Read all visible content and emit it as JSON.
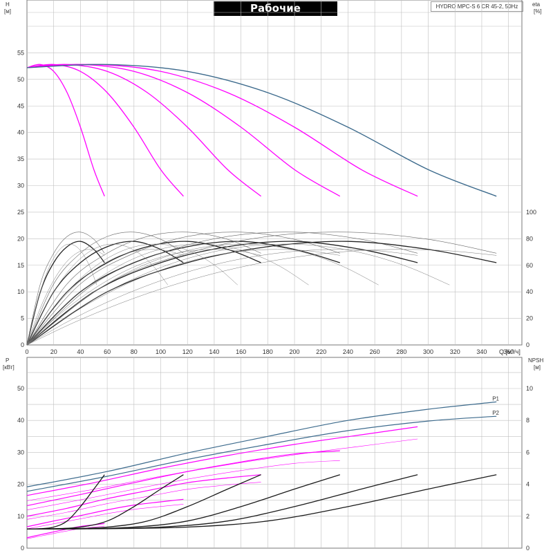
{
  "title": "Рабочие характеристики",
  "model": "HYDRO MPC-S 6 CR 45-2, 50Hz",
  "colors": {
    "max_curve": "#3c6a8c",
    "pump_curve": "#ff00ff",
    "eff_curve": "#222222",
    "npsh_curve": "#1a1a1a",
    "grid": "#bfbfbf"
  },
  "axes": {
    "h_label": "H",
    "h_unit": "[м]",
    "eta_label": "eta",
    "eta_unit": "[%]",
    "q_label": "Q [м³/ч]",
    "p_label": "P",
    "p_unit": "[кВт]",
    "npsh_label": "NPSH",
    "npsh_unit": "[м]"
  },
  "chart_data": [
    {
      "type": "line",
      "name": "head",
      "xlim": [
        0,
        370
      ],
      "ylim": [
        0,
        60
      ],
      "x_ticks": [
        0,
        20,
        40,
        60,
        80,
        100,
        120,
        140,
        160,
        180,
        200,
        220,
        240,
        260,
        280,
        300,
        320,
        340,
        360
      ],
      "y_ticks": [
        0,
        5,
        10,
        15,
        20,
        25,
        30,
        35,
        40,
        45,
        50,
        55
      ],
      "series": [
        {
          "pumps": 1,
          "x": [
            0,
            10,
            20,
            30,
            40,
            50,
            58
          ],
          "y": [
            52.2,
            52.8,
            51.5,
            47.5,
            41,
            33,
            28
          ]
        },
        {
          "pumps": 2,
          "x": [
            0,
            20,
            40,
            60,
            80,
            100,
            117
          ],
          "y": [
            52.2,
            52.8,
            51.5,
            47.5,
            41,
            33,
            28
          ]
        },
        {
          "pumps": 3,
          "x": [
            0,
            30,
            60,
            90,
            120,
            150,
            175
          ],
          "y": [
            52.2,
            52.8,
            51.5,
            47.5,
            41,
            33,
            28
          ]
        },
        {
          "pumps": 4,
          "x": [
            0,
            40,
            80,
            120,
            160,
            200,
            234
          ],
          "y": [
            52.2,
            52.8,
            51.5,
            47.5,
            41,
            33,
            28
          ]
        },
        {
          "pumps": 5,
          "x": [
            0,
            50,
            100,
            150,
            200,
            250,
            292
          ],
          "y": [
            52.2,
            52.8,
            51.5,
            47.5,
            41,
            33,
            28
          ]
        },
        {
          "pumps": 6,
          "x": [
            0,
            60,
            120,
            180,
            240,
            300,
            351
          ],
          "y": [
            52.2,
            52.8,
            51.5,
            47.5,
            41,
            33,
            28
          ]
        }
      ]
    },
    {
      "type": "line",
      "name": "efficiency",
      "ylim": [
        0,
        100
      ],
      "y_ticks": [
        0,
        20,
        40,
        60,
        80,
        100
      ],
      "series": [
        {
          "pumps": 1,
          "x": [
            0,
            10,
            20,
            30,
            40,
            50,
            58
          ],
          "y": [
            0,
            40,
            62,
            74,
            78,
            72,
            62
          ]
        },
        {
          "pumps": 2,
          "x": [
            0,
            20,
            40,
            60,
            80,
            100,
            117
          ],
          "y": [
            0,
            40,
            62,
            74,
            78,
            72,
            62
          ]
        },
        {
          "pumps": 3,
          "x": [
            0,
            30,
            60,
            90,
            120,
            150,
            175
          ],
          "y": [
            0,
            40,
            62,
            74,
            78,
            72,
            62
          ]
        },
        {
          "pumps": 4,
          "x": [
            0,
            40,
            80,
            120,
            160,
            200,
            234
          ],
          "y": [
            0,
            40,
            62,
            74,
            78,
            72,
            62
          ]
        },
        {
          "pumps": 5,
          "x": [
            0,
            50,
            100,
            150,
            200,
            250,
            292
          ],
          "y": [
            0,
            40,
            62,
            74,
            78,
            72,
            62
          ]
        },
        {
          "pumps": 6,
          "x": [
            0,
            60,
            120,
            180,
            240,
            300,
            351
          ],
          "y": [
            0,
            40,
            62,
            74,
            78,
            72,
            62
          ]
        }
      ]
    },
    {
      "type": "line",
      "name": "power",
      "ylim": [
        0,
        55
      ],
      "y_ticks": [
        0,
        10,
        20,
        30,
        40,
        50
      ],
      "series": [
        {
          "name": "P1",
          "x": [
            0,
            60,
            120,
            180,
            240,
            300,
            351
          ],
          "y": [
            19.2,
            24,
            29.8,
            35,
            40,
            43.5,
            45.8
          ]
        },
        {
          "name": "P2",
          "x": [
            0,
            60,
            120,
            180,
            240,
            300,
            351
          ],
          "y": [
            17.8,
            22.5,
            27.8,
            32.5,
            36.8,
            39.8,
            41.3
          ]
        },
        {
          "pumps": 5,
          "x": [
            0,
            50,
            100,
            150,
            200,
            250,
            292
          ],
          "y": [
            16.5,
            20.5,
            25,
            29,
            32.5,
            35.5,
            38
          ]
        },
        {
          "pumps": 4,
          "x": [
            0,
            40,
            80,
            120,
            160,
            200,
            234
          ],
          "y": [
            13.3,
            16.8,
            20.5,
            24,
            27,
            29.5,
            30.5
          ]
        },
        {
          "pumps": 3,
          "x": [
            0,
            30,
            60,
            90,
            120,
            150,
            175
          ],
          "y": [
            10,
            12.5,
            15.5,
            18,
            20.5,
            22,
            23
          ]
        },
        {
          "pumps": 2,
          "x": [
            0,
            20,
            40,
            60,
            80,
            100,
            117
          ],
          "y": [
            6.7,
            8.5,
            10.2,
            12,
            13.5,
            14.5,
            15.3
          ]
        },
        {
          "pumps": 1,
          "x": [
            0,
            10,
            20,
            30,
            40,
            50,
            58
          ],
          "y": [
            3.3,
            4.2,
            5.1,
            6,
            6.8,
            7.3,
            7.7
          ]
        }
      ]
    },
    {
      "type": "line",
      "name": "npsh",
      "ylim": [
        0,
        11
      ],
      "y_ticks": [
        0,
        2,
        4,
        6,
        8,
        10
      ],
      "series": [
        {
          "pumps": 1,
          "x": [
            0,
            10,
            20,
            30,
            40,
            50,
            58
          ],
          "y": [
            1.2,
            1.22,
            1.32,
            1.7,
            2.6,
            3.7,
            4.6
          ]
        },
        {
          "pumps": 2,
          "x": [
            0,
            20,
            40,
            60,
            80,
            100,
            117
          ],
          "y": [
            1.2,
            1.22,
            1.32,
            1.7,
            2.6,
            3.7,
            4.6
          ]
        },
        {
          "pumps": 3,
          "x": [
            0,
            30,
            60,
            90,
            120,
            150,
            175
          ],
          "y": [
            1.2,
            1.22,
            1.32,
            1.7,
            2.6,
            3.7,
            4.6
          ]
        },
        {
          "pumps": 4,
          "x": [
            0,
            40,
            80,
            120,
            160,
            200,
            234
          ],
          "y": [
            1.2,
            1.22,
            1.32,
            1.7,
            2.6,
            3.7,
            4.6
          ]
        },
        {
          "pumps": 5,
          "x": [
            0,
            50,
            100,
            150,
            200,
            250,
            292
          ],
          "y": [
            1.2,
            1.22,
            1.32,
            1.7,
            2.6,
            3.7,
            4.6
          ]
        },
        {
          "pumps": 6,
          "x": [
            0,
            60,
            120,
            180,
            240,
            300,
            351
          ],
          "y": [
            1.2,
            1.22,
            1.32,
            1.7,
            2.6,
            3.7,
            4.6
          ]
        }
      ]
    }
  ]
}
